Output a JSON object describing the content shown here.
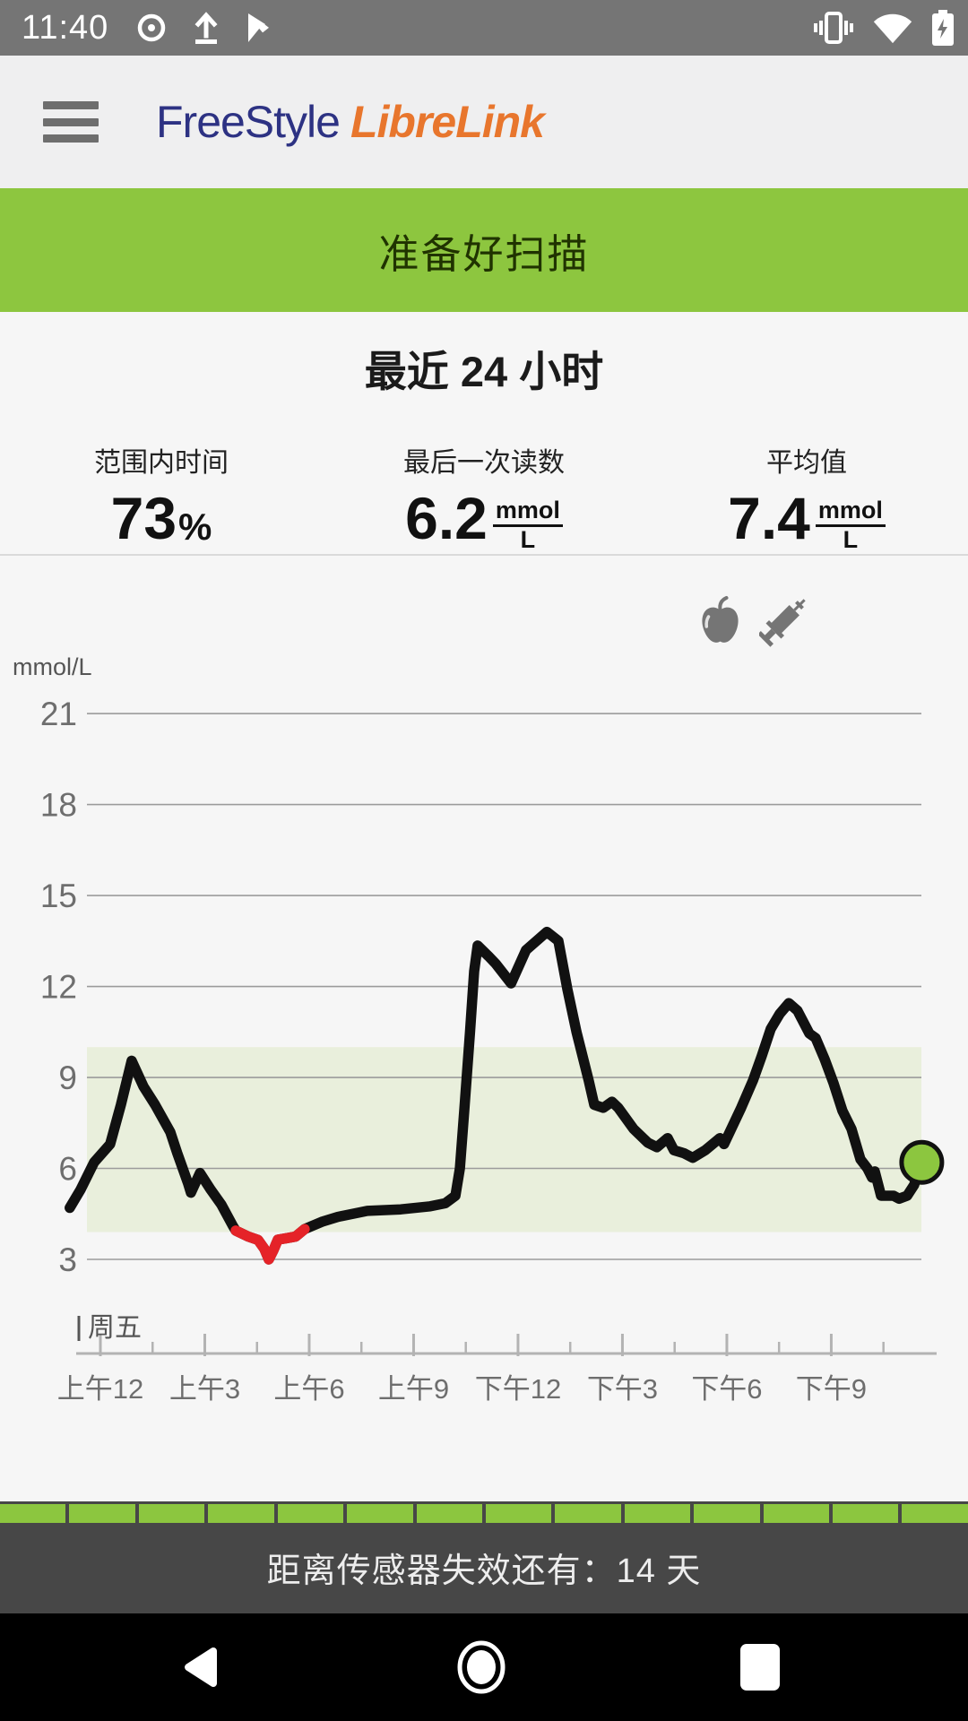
{
  "status_bar": {
    "time": "11:40",
    "left_icons": [
      "record-icon",
      "upload-icon",
      "play-store-icon"
    ],
    "right_icons": [
      "vibrate-icon",
      "wifi-icon",
      "battery-charging-icon"
    ]
  },
  "header": {
    "logo_part1": "FreeStyle",
    "logo_part2": "LibreLink"
  },
  "scan_banner": {
    "label": "准备好扫描"
  },
  "summary": {
    "title": "最近 24 小时",
    "stats": [
      {
        "label": "范围内时间",
        "value": "73",
        "unit": "%"
      },
      {
        "label": "最后一次读数",
        "value": "6.2",
        "unit_num": "mmol",
        "unit_den": "L"
      },
      {
        "label": "平均值",
        "value": "7.4",
        "unit_num": "mmol",
        "unit_den": "L"
      }
    ]
  },
  "chart_data": {
    "type": "line",
    "ylabel": "mmol/L",
    "yticks": [
      3,
      6,
      9,
      12,
      15,
      18,
      21
    ],
    "ylim": [
      2.4,
      22.5
    ],
    "xlim_hours": [
      -0.9,
      23.75
    ],
    "xtick_hours": [
      0,
      3,
      6,
      9,
      12,
      15,
      18,
      21
    ],
    "xtick_labels": [
      "上午12",
      "上午3",
      "上午6",
      "上午9",
      "下午12",
      "下午3",
      "下午6",
      "下午9"
    ],
    "minor_tick_hours": [
      1.5,
      4.5,
      7.5,
      10.5,
      13.5,
      16.5,
      19.5,
      22.5
    ],
    "day_marker": {
      "hour": -0.62,
      "label": "周五"
    },
    "target_range": [
      3.9,
      10.0
    ],
    "grid": true,
    "legend_icons": [
      "apple-icon",
      "syringe-icon"
    ],
    "series": [
      {
        "name": "glucose",
        "points": [
          [
            -0.88,
            4.7
          ],
          [
            -0.57,
            5.3
          ],
          [
            -0.18,
            6.2
          ],
          [
            0.28,
            6.8
          ],
          [
            0.59,
            8.1
          ],
          [
            0.9,
            9.55
          ],
          [
            1.24,
            8.7
          ],
          [
            1.57,
            8.1
          ],
          [
            2.01,
            7.2
          ],
          [
            2.21,
            6.5
          ],
          [
            2.52,
            5.5
          ],
          [
            2.6,
            5.2
          ],
          [
            2.86,
            5.85
          ],
          [
            3.17,
            5.3
          ],
          [
            3.48,
            4.8
          ],
          [
            3.81,
            4.1
          ],
          [
            3.89,
            3.95
          ],
          [
            4.25,
            3.75
          ],
          [
            4.53,
            3.64
          ],
          [
            4.71,
            3.35
          ],
          [
            4.84,
            3.0
          ],
          [
            4.97,
            3.3
          ],
          [
            5.1,
            3.65
          ],
          [
            5.36,
            3.7
          ],
          [
            5.61,
            3.75
          ],
          [
            5.87,
            4.0
          ],
          [
            6.39,
            4.25
          ],
          [
            6.82,
            4.4
          ],
          [
            7.67,
            4.6
          ],
          [
            8.63,
            4.65
          ],
          [
            9.48,
            4.75
          ],
          [
            9.91,
            4.85
          ],
          [
            10.2,
            5.1
          ],
          [
            10.33,
            6.0
          ],
          [
            10.46,
            8.0
          ],
          [
            10.62,
            10.5
          ],
          [
            10.74,
            12.5
          ],
          [
            10.84,
            13.35
          ],
          [
            11.15,
            13.0
          ],
          [
            11.36,
            12.75
          ],
          [
            11.8,
            12.1
          ],
          [
            12.23,
            13.2
          ],
          [
            12.83,
            13.8
          ],
          [
            13.16,
            13.5
          ],
          [
            13.42,
            11.9
          ],
          [
            13.68,
            10.5
          ],
          [
            14.03,
            8.9
          ],
          [
            14.19,
            8.1
          ],
          [
            14.45,
            8.0
          ],
          [
            14.7,
            8.2
          ],
          [
            14.88,
            8.0
          ],
          [
            15.32,
            7.3
          ],
          [
            15.73,
            6.85
          ],
          [
            15.99,
            6.7
          ],
          [
            16.3,
            7.0
          ],
          [
            16.48,
            6.6
          ],
          [
            16.77,
            6.5
          ],
          [
            17.02,
            6.35
          ],
          [
            17.38,
            6.6
          ],
          [
            17.8,
            7.0
          ],
          [
            17.92,
            6.8
          ],
          [
            18.41,
            8.0
          ],
          [
            18.75,
            8.9
          ],
          [
            19.0,
            9.7
          ],
          [
            19.26,
            10.6
          ],
          [
            19.52,
            11.1
          ],
          [
            19.78,
            11.45
          ],
          [
            20.03,
            11.2
          ],
          [
            20.37,
            10.45
          ],
          [
            20.55,
            10.3
          ],
          [
            20.81,
            9.6
          ],
          [
            21.07,
            8.8
          ],
          [
            21.32,
            7.9
          ],
          [
            21.58,
            7.3
          ],
          [
            21.84,
            6.3
          ],
          [
            22.04,
            6.0
          ],
          [
            22.17,
            5.7
          ],
          [
            22.25,
            5.9
          ],
          [
            22.43,
            5.1
          ],
          [
            22.79,
            5.1
          ],
          [
            22.95,
            5.0
          ],
          [
            23.18,
            5.1
          ],
          [
            23.38,
            5.45
          ],
          [
            23.6,
            6.2
          ]
        ]
      }
    ],
    "low_segment_hours": [
      3.89,
      5.87
    ],
    "current_point": {
      "hour": 23.6,
      "value": 6.2
    },
    "colors": {
      "line": "#111111",
      "low": "#e52328",
      "band": "#e9efdc",
      "dot": "#8cc63f",
      "grid": "#9b9b9b",
      "axis": "#b3b3b3",
      "tick_text": "#6e6e6e",
      "label_text": "#555555"
    }
  },
  "sensor_footer": {
    "text": "距离传感器失效还有：14 天",
    "days_remaining": 14,
    "segments_total": 14,
    "segment_color": "#8cc63f"
  },
  "nav_bar": {
    "icons": [
      "back",
      "home",
      "recents"
    ]
  },
  "brand_colors": {
    "green": "#8dc63f",
    "navy": "#2d3283",
    "orange": "#e8762d"
  }
}
